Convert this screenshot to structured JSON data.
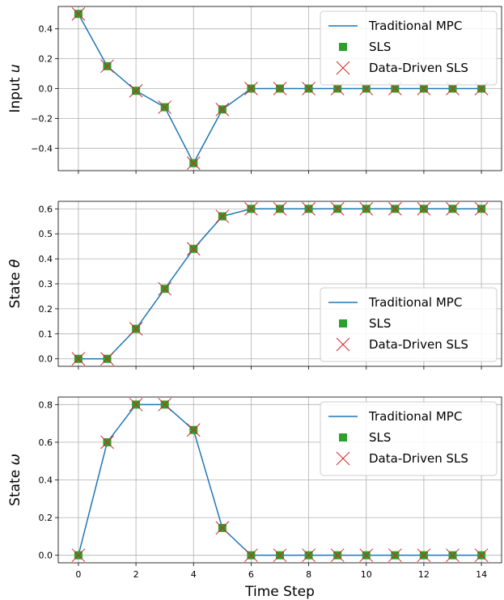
{
  "chart_data": [
    {
      "type": "line",
      "ylabel": "Input $u$",
      "ylabel_parts": [
        "Input ",
        "u"
      ],
      "xlabel": "",
      "xlim": [
        -0.7,
        14.7
      ],
      "ylim": [
        -0.55,
        0.55
      ],
      "xticks": [
        0,
        2,
        4,
        6,
        8,
        10,
        12,
        14
      ],
      "yticks": [
        0.4,
        0.2,
        0.0,
        -0.2,
        -0.4
      ],
      "ytick_labels": [
        "0.4",
        "0.2",
        "0.0",
        "−0.2",
        "−0.4"
      ],
      "grid": true,
      "legend": "upper right",
      "x": [
        0,
        1,
        2,
        3,
        4,
        5,
        6,
        7,
        8,
        9,
        10,
        11,
        12,
        13,
        14
      ],
      "series": [
        {
          "name": "Traditional MPC",
          "style": "line",
          "color": "#1f77b4",
          "values": [
            0.5,
            0.15,
            -0.015,
            -0.125,
            -0.5,
            -0.14,
            0,
            0,
            0,
            0,
            0,
            0,
            0,
            0,
            0
          ]
        },
        {
          "name": "SLS",
          "style": "square",
          "color": "#2ca02c",
          "values": [
            0.5,
            0.15,
            -0.015,
            -0.125,
            -0.5,
            -0.14,
            0,
            0,
            0,
            0,
            0,
            0,
            0,
            0,
            0
          ]
        },
        {
          "name": "Data-Driven SLS",
          "style": "x",
          "color": "#d62728",
          "values": [
            0.5,
            0.15,
            -0.015,
            -0.125,
            -0.5,
            -0.14,
            0,
            0,
            0,
            0,
            0,
            0,
            0,
            0,
            0
          ]
        }
      ]
    },
    {
      "type": "line",
      "ylabel": "State $\\theta$",
      "ylabel_parts": [
        "State ",
        "θ"
      ],
      "xlabel": "",
      "xlim": [
        -0.7,
        14.7
      ],
      "ylim": [
        -0.03,
        0.63
      ],
      "xticks": [
        0,
        2,
        4,
        6,
        8,
        10,
        12,
        14
      ],
      "yticks": [
        0.6,
        0.5,
        0.4,
        0.3,
        0.2,
        0.1,
        0.0
      ],
      "ytick_labels": [
        "0.6",
        "0.5",
        "0.4",
        "0.3",
        "0.2",
        "0.1",
        "0.0"
      ],
      "grid": true,
      "legend": "lower right",
      "x": [
        0,
        1,
        2,
        3,
        4,
        5,
        6,
        7,
        8,
        9,
        10,
        11,
        12,
        13,
        14
      ],
      "series": [
        {
          "name": "Traditional MPC",
          "style": "line",
          "color": "#1f77b4",
          "values": [
            0,
            0,
            0.12,
            0.28,
            0.44,
            0.57,
            0.6,
            0.6,
            0.6,
            0.6,
            0.6,
            0.6,
            0.6,
            0.6,
            0.6
          ]
        },
        {
          "name": "SLS",
          "style": "square",
          "color": "#2ca02c",
          "values": [
            0,
            0,
            0.12,
            0.28,
            0.44,
            0.57,
            0.6,
            0.6,
            0.6,
            0.6,
            0.6,
            0.6,
            0.6,
            0.6,
            0.6
          ]
        },
        {
          "name": "Data-Driven SLS",
          "style": "x",
          "color": "#d62728",
          "values": [
            0,
            0,
            0.12,
            0.28,
            0.44,
            0.57,
            0.6,
            0.6,
            0.6,
            0.6,
            0.6,
            0.6,
            0.6,
            0.6,
            0.6
          ]
        }
      ]
    },
    {
      "type": "line",
      "ylabel": "State $\\omega$",
      "ylabel_parts": [
        "State ",
        "ω"
      ],
      "xlabel": "Time Step",
      "xlim": [
        -0.7,
        14.7
      ],
      "ylim": [
        -0.04,
        0.84
      ],
      "xticks": [
        0,
        2,
        4,
        6,
        8,
        10,
        12,
        14
      ],
      "yticks": [
        0.8,
        0.6,
        0.4,
        0.2,
        0.0
      ],
      "ytick_labels": [
        "0.8",
        "0.6",
        "0.4",
        "0.2",
        "0.0"
      ],
      "grid": true,
      "legend": "upper right",
      "x": [
        0,
        1,
        2,
        3,
        4,
        5,
        6,
        7,
        8,
        9,
        10,
        11,
        12,
        13,
        14
      ],
      "series": [
        {
          "name": "Traditional MPC",
          "style": "line",
          "color": "#1f77b4",
          "values": [
            0,
            0.6,
            0.8,
            0.8,
            0.665,
            0.145,
            0,
            0,
            0,
            0,
            0,
            0,
            0,
            0,
            0
          ]
        },
        {
          "name": "SLS",
          "style": "square",
          "color": "#2ca02c",
          "values": [
            0,
            0.6,
            0.8,
            0.8,
            0.665,
            0.145,
            0,
            0,
            0,
            0,
            0,
            0,
            0,
            0,
            0
          ]
        },
        {
          "name": "Data-Driven SLS",
          "style": "x",
          "color": "#d62728",
          "values": [
            0,
            0.6,
            0.8,
            0.8,
            0.665,
            0.145,
            0,
            0,
            0,
            0,
            0,
            0,
            0,
            0,
            0
          ]
        }
      ]
    }
  ]
}
